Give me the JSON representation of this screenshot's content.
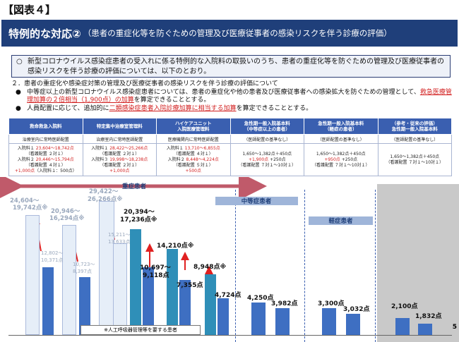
{
  "fig_label": "【図表４】",
  "title": {
    "main": "特例的な対応②",
    "sub": "（患者の重症化等を防ぐための管理及び医療従事者の感染リスクを伴う診療の評価）"
  },
  "note": {
    "mark": "○",
    "text": "新型コロナウイルス感染症患者の受入れに係る特例的な入院料の取扱いのうち、患者の重症化等を防ぐための管理及び医療従事者の感染リスクを伴う診療の評価については、以下のとおり。"
  },
  "section2": {
    "heading": "２．患者の重症化や感染症対策の管理及び医療従事者の感染リスクを伴う診療の評価について",
    "b1_pre": "中等症以上の新型コロナウイルス感染症患者については、患者の重症化や他の患者及び医療従事者への感染拡大を防ぐための管理として、",
    "b1_red": "救急医療管理加算の２倍相当（1,900点）の加算",
    "b1_post": "を算定できることとする。",
    "b2_pre": "人員配置に応じて、追加的に",
    "b2_red": "二類感染症患者入院診療加算に相当する加算",
    "b2_post": "を算定できることとする。",
    "bullet": "●"
  },
  "table": {
    "headers": [
      "救命救急入院料",
      "特定集中治療室管理料",
      "ハイケアユニット\n入院医療管理料",
      "急性期一般入院基本料\n（中等症以上の患者）",
      "急性期一般入院基本料\n（軽症の患者）",
      "（参考・従来の評価）\n急性期一般入院基本料"
    ],
    "row1": [
      "治療室内に常時医師配置",
      "治療室内に常時医師配置",
      "医療機関内に常時医師配置",
      "（医師配置の基準なし）",
      "（医師配置の基準なし）",
      "（医師配置の基準なし）"
    ],
    "row2": [
      [
        {
          "t": "入院料１ ",
          "r": "23,604〜18,742点"
        },
        {
          "t": "（看護配置 ２対１）"
        },
        {
          "t": "入院料２ ",
          "r": "20,446〜15,794点"
        },
        {
          "t": "（看護配置 ４対１）"
        },
        {
          "r": "+1,000点",
          "t": "（入院料１：500点）"
        }
      ],
      [
        {
          "t": "入院料１ ",
          "r": "28,422〜25,266点"
        },
        {
          "t": "（看護配置 ２対１）"
        },
        {
          "t": "入院料３ ",
          "r": "19,998〜18,238点"
        },
        {
          "t": "（看護配置 ２対１）"
        },
        {
          "r": "+1,000点"
        }
      ],
      [
        {
          "t": "入院料１ ",
          "r": "13,710〜6,855点"
        },
        {
          "t": "（看護配置 ４対１）"
        },
        {
          "t": "入院料２ ",
          "r": "8,448〜4,224点"
        },
        {
          "t": "（看護配置 ５対１）"
        },
        {
          "r": "+500点"
        }
      ],
      [
        {
          "t": "1,650〜1,382点＋450点"
        },
        {
          "r": "+1,900点",
          "t": " +250点"
        },
        {
          "t": "（看護配置 ７対１〜10対１）"
        }
      ],
      [
        {
          "t": "1,650〜1,382点＋450点"
        },
        {
          "r": "+950点",
          "t": " +250点"
        },
        {
          "t": "（看護配置 ７対１〜10対１）"
        }
      ],
      [
        {
          "t": "1,650〜1,382点＋450点"
        },
        {
          "t": "（看護配置 ７対１〜10対１）"
        }
      ]
    ]
  },
  "chart": {
    "labels": {
      "severe": "重症患者",
      "moderate": "中等症患者",
      "mild": "軽症患者"
    },
    "values": {
      "a_ghost_top": "24,604〜",
      "a_ghost_bot": "19,742点※",
      "a_small_1": "12,802〜",
      "a_small_2": "10,371点",
      "b_ghost_top": "20,946〜",
      "b_ghost_bot": "16,294点※",
      "b_small_1": "10,723〜",
      "b_small_2": "8,397点",
      "c_ghost_top": "29,422〜",
      "c_ghost_bot": "26,266点※",
      "c_small_1": "15,211〜",
      "c_small_2": "13,633点",
      "c_new_top": "20,394〜",
      "c_new_bot": "17,236点※",
      "d_new_1": "10,697〜",
      "d_new_2": "9,118点",
      "e_new": "14,210点※",
      "f_new": "8,948点※",
      "g_new": "7,355点",
      "h_new": "4,724点",
      "i_new": "4,250点",
      "j_new": "3,982点",
      "k_new": "3,300点",
      "l_new": "3,032点",
      "m_new": "2,100点",
      "n_new": "1,832点"
    },
    "footnote": "※人工呼吸器管理等を要する患者",
    "page": "5"
  },
  "colors": {
    "navy": "#1f3f7a",
    "red": "#d21f1f",
    "teal": "#2f8fb8",
    "blue": "#3e6fc2"
  }
}
